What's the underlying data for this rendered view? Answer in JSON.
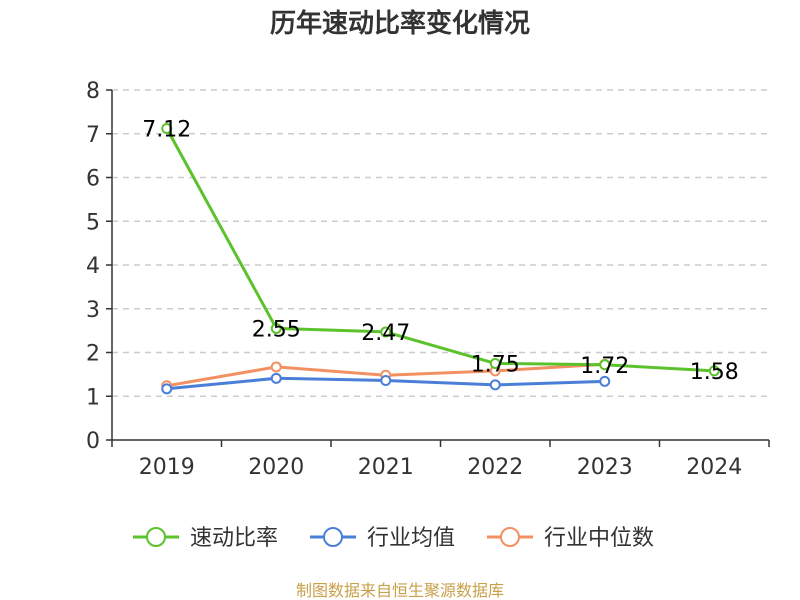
{
  "chart_data": {
    "type": "line",
    "title": "历年速动比率变化情况",
    "categories": [
      "2019",
      "2020",
      "2021",
      "2022",
      "2023",
      "2024"
    ],
    "ylim": [
      0,
      8
    ],
    "yticks": [
      0,
      1,
      2,
      3,
      4,
      5,
      6,
      7,
      8
    ],
    "grid": true,
    "legend_position": "bottom",
    "series": [
      {
        "name": "速动比率",
        "color": "#5cc22b",
        "values": [
          7.12,
          2.55,
          2.47,
          1.75,
          1.72,
          1.58
        ],
        "show_labels": true,
        "labels": [
          "7.12",
          "2.55",
          "2.47",
          "1.75",
          "1.72",
          "1.58"
        ]
      },
      {
        "name": "行业均值",
        "color": "#4a7fd8",
        "values": [
          1.17,
          1.41,
          1.36,
          1.26,
          1.34,
          null
        ],
        "show_labels": false
      },
      {
        "name": "行业中位数",
        "color": "#f39062",
        "values": [
          1.24,
          1.67,
          1.48,
          1.58,
          1.73,
          null
        ],
        "show_labels": false
      }
    ],
    "source": "制图数据来自恒生聚源数据库"
  }
}
